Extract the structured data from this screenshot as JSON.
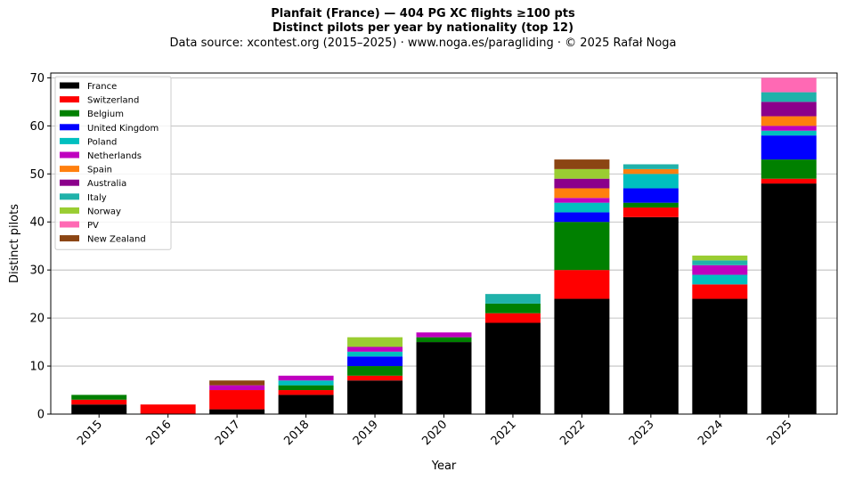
{
  "header": {
    "title_line1": "Planfait (France)  —  404 PG XC flights ≥100 pts",
    "title_line2": "Distinct pilots per year by nationality (top 12)",
    "subtitle": "Data source: xcontest.org (2015–2025)  ·  www.noga.es/paragliding  ·  © 2025 Rafał Noga"
  },
  "chart_data": {
    "type": "bar",
    "stacked": true,
    "title": "Distinct pilots per year by nationality (top 12)",
    "xlabel": "Year",
    "ylabel": "Distinct pilots",
    "ylim": [
      0,
      71
    ],
    "yticks": [
      0,
      10,
      20,
      30,
      40,
      50,
      60,
      70
    ],
    "grid": "y",
    "legend_position": "top-left",
    "categories": [
      "2015",
      "2016",
      "2017",
      "2018",
      "2019",
      "2020",
      "2021",
      "2022",
      "2023",
      "2024",
      "2025"
    ],
    "series": [
      {
        "name": "France",
        "color": "#000000",
        "values": [
          2,
          0,
          1,
          4,
          7,
          15,
          19,
          24,
          41,
          24,
          48
        ]
      },
      {
        "name": "Switzerland",
        "color": "#ff0000",
        "values": [
          1,
          2,
          4,
          1,
          1,
          0,
          2,
          6,
          2,
          3,
          1
        ]
      },
      {
        "name": "Belgium",
        "color": "#008000",
        "values": [
          1,
          0,
          0,
          1,
          2,
          1,
          2,
          10,
          1,
          0,
          4
        ]
      },
      {
        "name": "United Kingdom",
        "color": "#0000ff",
        "values": [
          0,
          0,
          0,
          0,
          2,
          0,
          0,
          2,
          3,
          0,
          5
        ]
      },
      {
        "name": "Poland",
        "color": "#00bfbf",
        "values": [
          0,
          0,
          0,
          1,
          1,
          0,
          0,
          2,
          3,
          2,
          1
        ]
      },
      {
        "name": "Netherlands",
        "color": "#bf00bf",
        "values": [
          0,
          0,
          1,
          1,
          1,
          1,
          0,
          1,
          0,
          2,
          1
        ]
      },
      {
        "name": "Spain",
        "color": "#ff7f0e",
        "values": [
          0,
          0,
          0,
          0,
          0,
          0,
          0,
          2,
          1,
          0,
          2
        ]
      },
      {
        "name": "Australia",
        "color": "#8b008b",
        "values": [
          0,
          0,
          0,
          0,
          0,
          0,
          0,
          2,
          0,
          0,
          3
        ]
      },
      {
        "name": "Italy",
        "color": "#20b2aa",
        "values": [
          0,
          0,
          0,
          0,
          0,
          0,
          2,
          0,
          1,
          1,
          2
        ]
      },
      {
        "name": "Norway",
        "color": "#9acd32",
        "values": [
          0,
          0,
          0,
          0,
          2,
          0,
          0,
          2,
          0,
          1,
          0
        ]
      },
      {
        "name": "PV",
        "color": "#ff69b4",
        "values": [
          0,
          0,
          0,
          0,
          0,
          0,
          0,
          0,
          0,
          0,
          3
        ]
      },
      {
        "name": "New Zealand",
        "color": "#8b4513",
        "values": [
          0,
          0,
          1,
          0,
          0,
          0,
          0,
          2,
          0,
          0,
          0
        ]
      }
    ]
  }
}
